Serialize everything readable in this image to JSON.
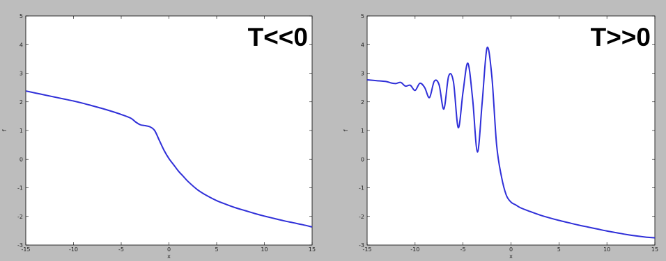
{
  "chart_data": [
    {
      "type": "line",
      "title": "T<<0",
      "xlabel": "x",
      "ylabel": "f",
      "xlim": [
        -15,
        15
      ],
      "ylim": [
        -3,
        5
      ],
      "xticks": [
        -15,
        -10,
        -5,
        0,
        5,
        10,
        15
      ],
      "yticks": [
        -3,
        -2,
        -1,
        0,
        1,
        2,
        3,
        4,
        5
      ],
      "grid": false,
      "line_color": "#2f2fd8",
      "series": [
        {
          "x": [
            -15,
            -14,
            -13,
            -12,
            -11,
            -10,
            -9,
            -8,
            -7,
            -6,
            -5,
            -4,
            -3.5,
            -3,
            -2.5,
            -2,
            -1.5,
            -1,
            -0.5,
            0,
            0.5,
            1,
            1.5,
            2,
            3,
            4,
            5,
            6,
            7,
            8,
            9,
            10,
            11,
            12,
            13,
            14,
            15
          ],
          "y": [
            2.38,
            2.31,
            2.24,
            2.17,
            2.1,
            2.03,
            1.95,
            1.86,
            1.77,
            1.67,
            1.56,
            1.43,
            1.3,
            1.2,
            1.17,
            1.13,
            1.0,
            0.65,
            0.3,
            0.02,
            -0.2,
            -0.42,
            -0.6,
            -0.78,
            -1.07,
            -1.28,
            -1.45,
            -1.58,
            -1.7,
            -1.8,
            -1.9,
            -1.99,
            -2.07,
            -2.15,
            -2.22,
            -2.29,
            -2.37
          ]
        }
      ]
    },
    {
      "type": "line",
      "title": "T>>0",
      "xlabel": "x",
      "ylabel": "f",
      "xlim": [
        -15,
        15
      ],
      "ylim": [
        -3,
        5
      ],
      "xticks": [
        -15,
        -10,
        -5,
        0,
        5,
        10,
        15
      ],
      "yticks": [
        -3,
        -2,
        -1,
        0,
        1,
        2,
        3,
        4,
        5
      ],
      "grid": false,
      "line_color": "#2f2fd8",
      "series": [
        {
          "x": [
            -15,
            -14,
            -13,
            -12.5,
            -12,
            -11.5,
            -11,
            -10.5,
            -10,
            -9.5,
            -9,
            -8.5,
            -8,
            -7.5,
            -7,
            -6.5,
            -6,
            -5.5,
            -5,
            -4.5,
            -4,
            -3.5,
            -3,
            -2.5,
            -2,
            -1.5,
            -1,
            -0.5,
            0,
            0.5,
            1,
            2,
            3,
            4,
            5,
            6,
            7,
            8,
            9,
            10,
            11,
            12,
            13,
            14,
            15
          ],
          "y": [
            2.77,
            2.74,
            2.71,
            2.66,
            2.64,
            2.68,
            2.55,
            2.58,
            2.4,
            2.65,
            2.5,
            2.15,
            2.72,
            2.6,
            1.75,
            2.9,
            2.7,
            1.1,
            2.35,
            3.35,
            2.1,
            0.25,
            2.0,
            3.88,
            2.9,
            0.5,
            -0.6,
            -1.25,
            -1.5,
            -1.6,
            -1.7,
            -1.83,
            -1.95,
            -2.05,
            -2.14,
            -2.22,
            -2.3,
            -2.37,
            -2.44,
            -2.51,
            -2.57,
            -2.63,
            -2.68,
            -2.72,
            -2.75
          ]
        }
      ]
    }
  ]
}
